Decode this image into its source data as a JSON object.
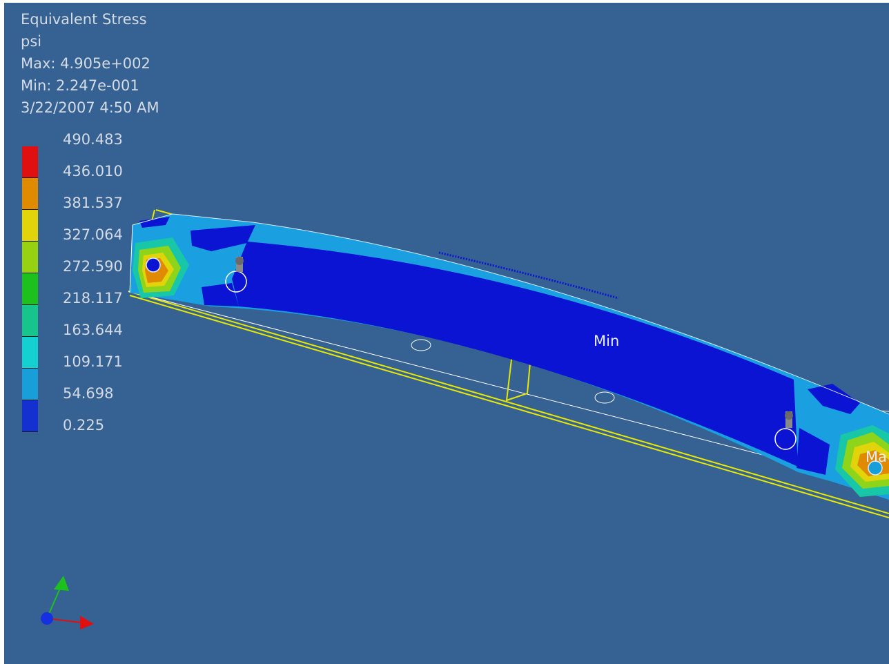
{
  "result": {
    "title": "Equivalent Stress",
    "units": "psi",
    "max": "Max: 4.905e+002",
    "min": "Min: 2.247e-001",
    "timestamp": "3/22/2007 4:50 AM"
  },
  "legend": {
    "labels": [
      "490.483",
      "436.010",
      "381.537",
      "327.064",
      "272.590",
      "218.117",
      "163.644",
      "109.171",
      "54.698",
      "0.225"
    ],
    "colors": [
      "#e01010",
      "#e08a00",
      "#e2d40a",
      "#98d012",
      "#1ec01e",
      "#16c48c",
      "#14d0d0",
      "#189ed8",
      "#1430d0"
    ]
  },
  "model": {
    "min_tag": "Min",
    "max_tag": "Ma"
  },
  "colors": {
    "background": "#356193",
    "stress_low": "#0a14d2",
    "stress_mid": "#1aa0e0",
    "edge_highlight": "#e8e800"
  },
  "triad": {
    "axes": [
      "x-axis",
      "y-axis",
      "z-axis"
    ]
  }
}
